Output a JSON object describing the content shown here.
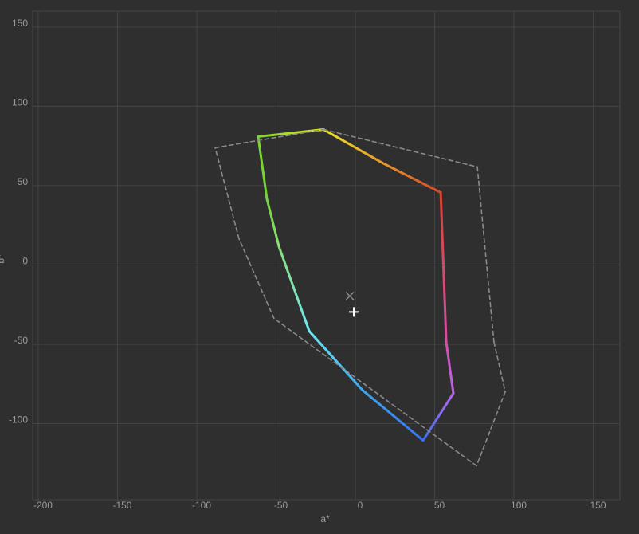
{
  "chart_data": {
    "type": "gamut",
    "xlabel": "a*",
    "ylabel": "b*",
    "xlim": [
      -203.5,
      166.8
    ],
    "ylim": [
      -148,
      160
    ],
    "xticks": [
      -200,
      -150,
      -100,
      -50,
      0,
      50,
      100,
      150
    ],
    "yticks": [
      -100,
      -50,
      0,
      50,
      100,
      150
    ],
    "grid": true,
    "series": [
      {
        "style": "solid",
        "x": [
          -61.3,
          -20.1,
          17.1,
          53.8,
          57.3,
          61.8,
          42.7,
          4.5,
          -29.1,
          -48.2,
          -55.8
        ],
        "y": [
          80.9,
          85.4,
          64.3,
          45.7,
          -48.7,
          -80.9,
          -110.6,
          -78.9,
          -41.7,
          11.6,
          41.7
        ],
        "colors": [
          "#7ed62c",
          "#e6e424",
          "#e89a2a",
          "#d8452e",
          "#d44fa6",
          "#b866f2",
          "#3a6ff0",
          "#3aa8f0",
          "#6ee6f0",
          "#8ee07a",
          "#74d23c"
        ]
      },
      {
        "style": "dashed",
        "color": "#8a8a8a",
        "x": [
          -88.4,
          -20.1,
          76.9,
          87.4,
          94.5,
          76.4,
          -51.3,
          -73.4
        ],
        "y": [
          73.9,
          85.4,
          61.8,
          -48.7,
          -79.9,
          -126.6,
          -33.7,
          16.6
        ]
      }
    ],
    "markers": [
      {
        "symbol": "x",
        "x": -3.5,
        "y": -19.6,
        "color": "#9a9a9a"
      },
      {
        "symbol": "plus",
        "x": -1,
        "y": -29.6,
        "color": "#ffffff"
      }
    ]
  }
}
